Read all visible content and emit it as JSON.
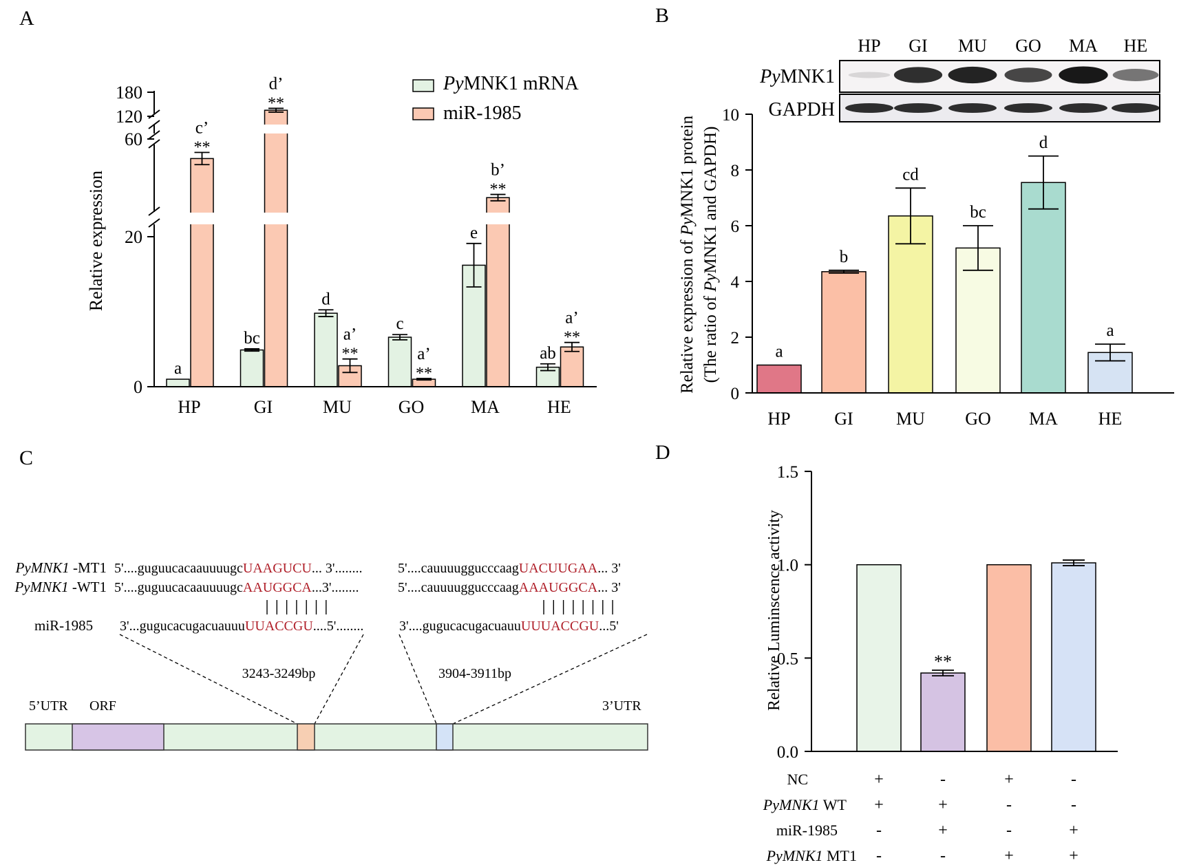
{
  "panel_labels": [
    "A",
    "B",
    "C",
    "D"
  ],
  "chart_data": [
    {
      "panel": "A",
      "type": "bar",
      "title": "",
      "xlabel": "",
      "ylabel": "Relative expression",
      "categories": [
        "HP",
        "GI",
        "MU",
        "GO",
        "MA",
        "HE"
      ],
      "y_axis_breaks": [
        [
          20,
          40
        ],
        [
          60,
          120
        ]
      ],
      "ytick_labels": [
        "0",
        "20",
        "60",
        "120",
        "180"
      ],
      "legend": [
        "PyMNK1 mRNA",
        "miR-1985"
      ],
      "legend_italic_prefix": "Py",
      "legend_rest": "MNK1 mRNA",
      "series": [
        {
          "name": "PyMNK1 mRNA",
          "color": "#e3f2e3",
          "values": [
            1.0,
            4.9,
            9.8,
            6.6,
            16.2,
            2.6
          ],
          "errors": [
            0.0,
            0.15,
            0.45,
            0.35,
            2.9,
            0.45
          ],
          "sig_letters": [
            "a",
            "bc",
            "d",
            "c",
            "e",
            "ab"
          ],
          "stars": [
            "",
            "",
            "",
            "",
            "",
            ""
          ]
        },
        {
          "name": "miR-1985",
          "color": "#fbc9b3",
          "values": [
            52,
            136,
            2.8,
            1.0,
            36,
            5.3
          ],
          "errors": [
            2.5,
            5,
            0.9,
            0.1,
            1.3,
            0.6
          ],
          "sig_letters": [
            "c’",
            "d’",
            "a’",
            "a’",
            "b’",
            "a’"
          ],
          "stars": [
            "**",
            "**",
            "**",
            "**",
            "**",
            "**"
          ]
        }
      ]
    },
    {
      "panel": "B",
      "type": "bar",
      "title": "",
      "xlabel": "",
      "ylabel_line1": "Relative expression of PyMNK1 protein",
      "ylabel_line2": "(The ratio of PyMNK1 and GAPDH)",
      "categories": [
        "HP",
        "GI",
        "MU",
        "GO",
        "MA",
        "HE"
      ],
      "ylim": [
        0,
        10
      ],
      "yticks": [
        0,
        2,
        4,
        6,
        8,
        10
      ],
      "values": [
        1.0,
        4.35,
        6.35,
        5.2,
        7.55,
        1.45
      ],
      "errors": [
        0.0,
        0.05,
        1.0,
        0.8,
        0.95,
        0.3
      ],
      "sig_letters": [
        "a",
        "b",
        "cd",
        "bc",
        "d",
        "a"
      ],
      "colors": [
        "#e07787",
        "#fbbfa6",
        "#f4f4a4",
        "#f7fbe3",
        "#a9dbcf",
        "#d6e3f3"
      ]
    },
    {
      "panel": "D",
      "type": "bar",
      "title": "",
      "xlabel": "",
      "ylabel": "Relative Luminscence activity",
      "ylim": [
        0,
        1.5
      ],
      "yticks": [
        0.0,
        0.5,
        1.0,
        1.5
      ],
      "ytick_labels": [
        "0.0",
        "0.5",
        "1.0",
        "1.5"
      ],
      "values": [
        1.0,
        0.42,
        1.0,
        1.01
      ],
      "errors": [
        0.0,
        0.015,
        0.0,
        0.015
      ],
      "stars": [
        "",
        "**",
        "",
        ""
      ],
      "colors": [
        "#e8f4e8",
        "#d5c3e3",
        "#fbbea6",
        "#d6e2f6"
      ],
      "conditions": [
        {
          "label": "NC",
          "values": [
            "+",
            "-",
            "+",
            "-"
          ]
        },
        {
          "label": "PyMNK1 WT",
          "values": [
            "+",
            "+",
            "-",
            "-"
          ]
        },
        {
          "label": "miR-1985",
          "values": [
            "-",
            "+",
            "-",
            "+"
          ]
        },
        {
          "label": "PyMNK1 MT1",
          "values": [
            "-",
            "-",
            "+",
            "+"
          ]
        }
      ]
    }
  ],
  "western_blot": {
    "lanes": [
      "HP",
      "GI",
      "MU",
      "GO",
      "MA",
      "HE"
    ],
    "row_labels": [
      "PyMNK1",
      "GAPDH"
    ],
    "intensities": [
      [
        0.05,
        0.85,
        0.9,
        0.75,
        0.95,
        0.55
      ],
      [
        0.85,
        0.85,
        0.85,
        0.85,
        0.85,
        0.85
      ]
    ]
  },
  "panel_c": {
    "mt1_label_italic": "PyMNK1",
    "mt1_label_rest": " -MT1",
    "wt1_label_italic": "PyMNK1",
    "wt1_label_rest": " -WT1",
    "mir_label": "miR-1985",
    "mt1_site1_prefix": "5'....guguucacaauuuugc",
    "mt1_site1_seed": "UAAGUCU",
    "mt1_site1_suffix": "... 3'........",
    "mt1_site2_prefix": "5'....cauuuuggucccaag",
    "mt1_site2_seed": "UACUUGAA",
    "mt1_site2_suffix": "... 3'",
    "wt1_site1_prefix": "5'....guguucacaauuuugc",
    "wt1_site1_seed": "AAUGGCA",
    "wt1_site1_suffix": "...3'........",
    "wt1_site2_prefix": "5'....cauuuuggucccaag",
    "wt1_site2_seed": "AAAUGGCA",
    "wt1_site2_suffix": "... 3'",
    "mir_site1_prefix": "3'...gugucacugacuauuu",
    "mir_site1_seed": "UUACCGU",
    "mir_site1_suffix": "....5'........",
    "mir_site2_prefix": "3'....gugucacugacuauu",
    "mir_site2_seed": "UUUACCGU",
    "mir_site2_suffix": "...5'",
    "site1_pairs": 7,
    "site2_pairs": 8,
    "site1_range": "3243-3249bp",
    "site2_range": "3904-3911bp",
    "utr5_label": "5’UTR",
    "orf_label": "ORF",
    "utr3_label": "3’UTR",
    "colors": {
      "utr": "#e3f3e3",
      "orf": "#d7c5e6",
      "site1": "#f7cfb3",
      "site2": "#d4e3f7"
    }
  }
}
